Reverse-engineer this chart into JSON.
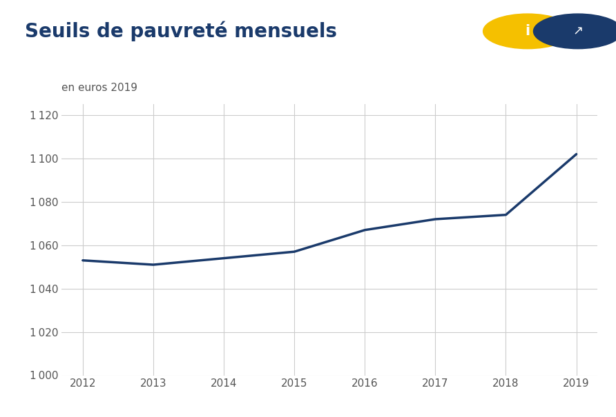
{
  "title": "Seuils de pauvreté mensuels",
  "subtitle": "en euros 2019",
  "years": [
    2012,
    2013,
    2014,
    2015,
    2016,
    2017,
    2018,
    2019
  ],
  "values": [
    1053,
    1051,
    1054,
    1057,
    1067,
    1072,
    1074,
    1102
  ],
  "line_color": "#1a3a6b",
  "line_width": 2.5,
  "background_color": "#ffffff",
  "grid_color": "#cccccc",
  "ylim": [
    1000,
    1125
  ],
  "yticks": [
    1000,
    1020,
    1040,
    1060,
    1080,
    1100,
    1120
  ],
  "title_color": "#1a3a6b",
  "title_fontsize": 20,
  "subtitle_fontsize": 11,
  "tick_color": "#555555",
  "tick_fontsize": 11,
  "icon_yellow": "#f5c000",
  "icon_blue": "#1a3a6b"
}
